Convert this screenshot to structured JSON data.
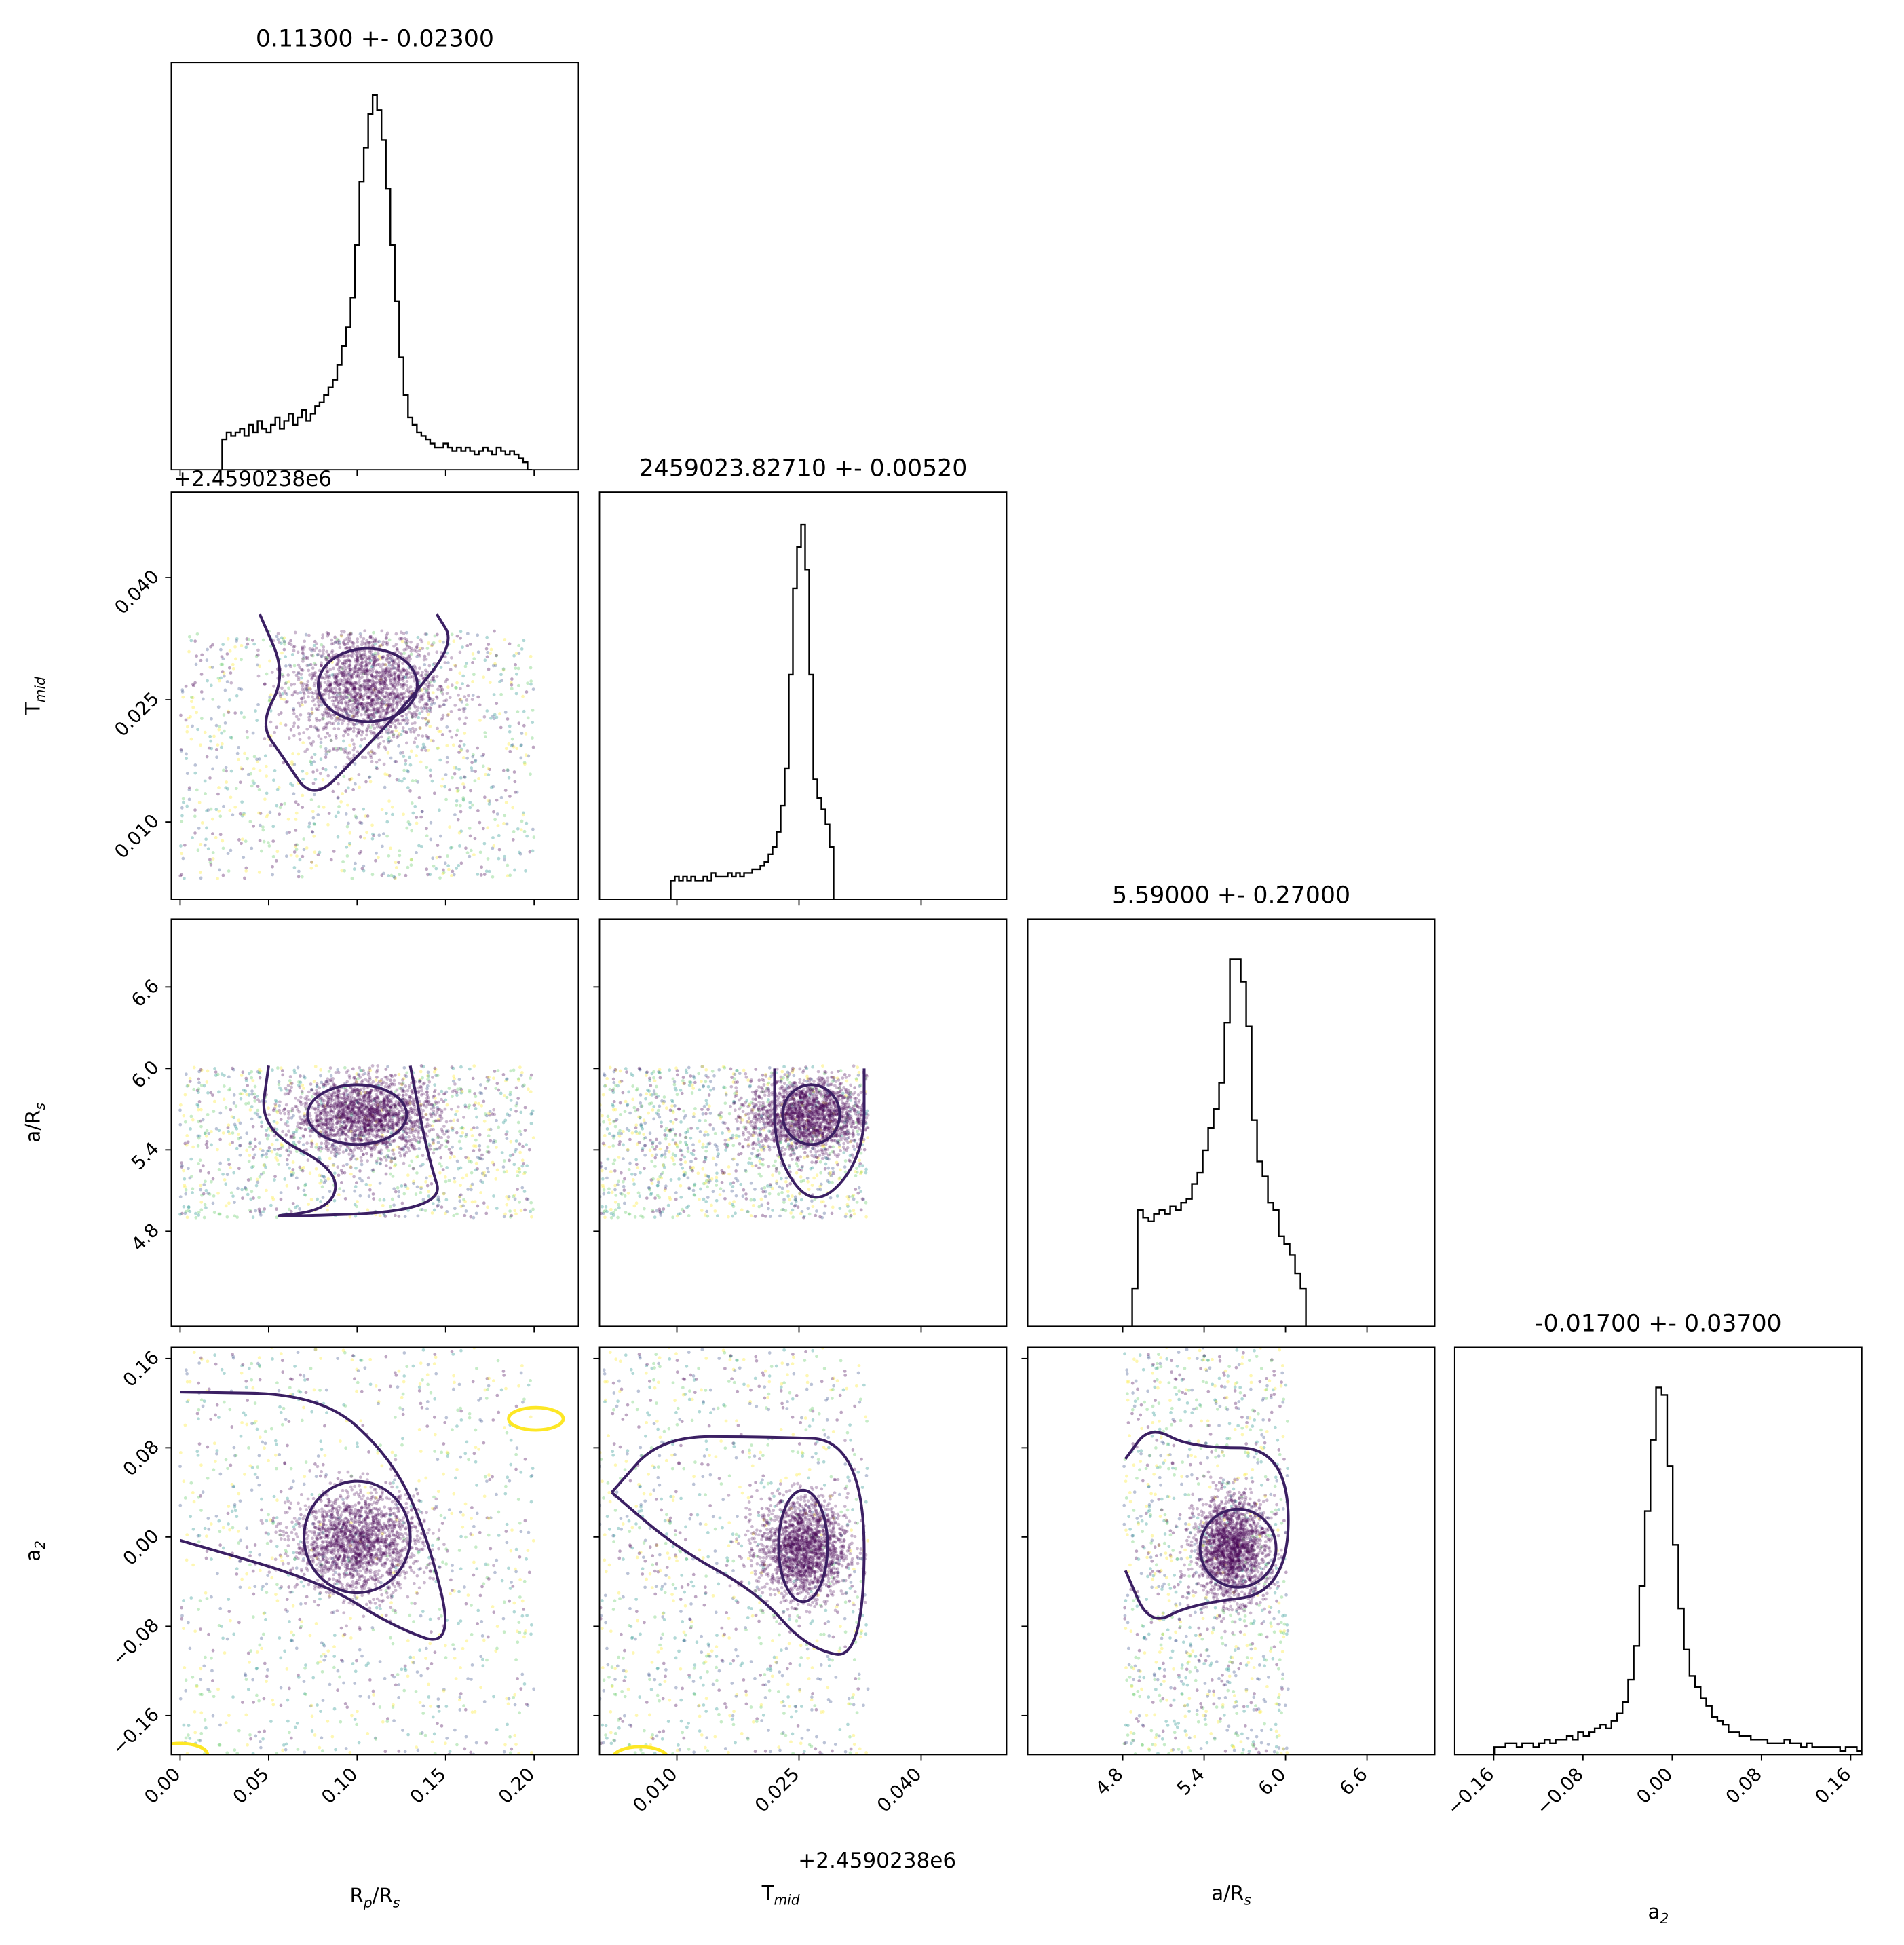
{
  "chart_data": {
    "type": "corner",
    "parameters": [
      {
        "key": "rp",
        "label": "R",
        "sub": "p",
        "label2": "/R",
        "sub2": "s",
        "range": [
          -0.005,
          0.225
        ],
        "ticks": [
          0.0,
          0.05,
          0.1,
          0.15,
          0.2
        ],
        "tick_labels": [
          "0.00",
          "0.05",
          "0.10",
          "0.15",
          "0.20"
        ]
      },
      {
        "key": "tmid",
        "label": "T",
        "sub": "mid",
        "label2": "",
        "sub2": "",
        "range": [
          0.0005,
          0.0505
        ],
        "ticks": [
          0.01,
          0.025,
          0.04
        ],
        "tick_labels": [
          "0.010",
          "0.025",
          "0.040"
        ],
        "offset_text": "+2.4590238e6"
      },
      {
        "key": "ars",
        "label": "a/R",
        "sub": "s",
        "label2": "",
        "sub2": "",
        "range": [
          4.1,
          7.1
        ],
        "ticks": [
          4.8,
          5.4,
          6.0,
          6.6
        ],
        "tick_labels": [
          "4.8",
          "5.4",
          "6.0",
          "6.6"
        ]
      },
      {
        "key": "a2",
        "label": "a",
        "sub": "2",
        "label2": "",
        "sub2": "",
        "range": [
          -0.195,
          0.17
        ],
        "ticks": [
          -0.16,
          -0.08,
          0.0,
          0.08,
          0.16
        ],
        "tick_labels": [
          "−0.16",
          "−0.08",
          "0.00",
          "0.08",
          "0.16"
        ]
      }
    ],
    "titles": [
      "0.11300 +- 0.02300",
      "2459023.82710 +- 0.00520",
      "5.59000 +- 0.27000",
      "-0.01700 +- 0.03700"
    ],
    "marginals": [
      {
        "param": "rp",
        "bin_width": 0.0025,
        "peak_center": 0.11,
        "bin_counts_relative": [
          0.08,
          0.1,
          0.09,
          0.1,
          0.11,
          0.09,
          0.12,
          0.1,
          0.13,
          0.11,
          0.1,
          0.12,
          0.14,
          0.11,
          0.13,
          0.15,
          0.12,
          0.14,
          0.16,
          0.13,
          0.15,
          0.17,
          0.18,
          0.2,
          0.22,
          0.24,
          0.28,
          0.33,
          0.38,
          0.46,
          0.6,
          0.77,
          0.86,
          0.95,
          1.0,
          0.96,
          0.88,
          0.75,
          0.6,
          0.45,
          0.3,
          0.2,
          0.14,
          0.12,
          0.1,
          0.09,
          0.08,
          0.07,
          0.06,
          0.06,
          0.07,
          0.06,
          0.05,
          0.06,
          0.05,
          0.06,
          0.05,
          0.04,
          0.05,
          0.06,
          0.05,
          0.04,
          0.06,
          0.05,
          0.04,
          0.05,
          0.04,
          0.03,
          0.02,
          0.0
        ]
      },
      {
        "param": "tmid",
        "bin_width": 0.0005,
        "peak_center": 0.0255,
        "bin_counts_relative": [
          0.05,
          0.06,
          0.05,
          0.06,
          0.05,
          0.06,
          0.05,
          0.05,
          0.06,
          0.05,
          0.07,
          0.06,
          0.06,
          0.06,
          0.07,
          0.06,
          0.07,
          0.06,
          0.07,
          0.07,
          0.08,
          0.08,
          0.09,
          0.1,
          0.12,
          0.14,
          0.18,
          0.25,
          0.35,
          0.6,
          0.83,
          0.94,
          1.0,
          0.88,
          0.6,
          0.32,
          0.27,
          0.24,
          0.2,
          0.14
        ]
      },
      {
        "param": "ars",
        "bin_width": 0.04,
        "peak_center": 5.61,
        "bin_counts_relative": [
          0.1,
          0.31,
          0.29,
          0.28,
          0.3,
          0.31,
          0.3,
          0.32,
          0.31,
          0.33,
          0.34,
          0.38,
          0.41,
          0.47,
          0.53,
          0.58,
          0.65,
          0.81,
          0.98,
          0.98,
          0.92,
          0.8,
          0.55,
          0.44,
          0.4,
          0.33,
          0.31,
          0.24,
          0.22,
          0.19,
          0.14,
          0.1
        ]
      },
      {
        "param": "a2",
        "bin_width": 0.005,
        "peak_center": -0.012,
        "bin_counts_relative": [
          0.02,
          0.02,
          0.03,
          0.03,
          0.02,
          0.03,
          0.03,
          0.02,
          0.03,
          0.04,
          0.03,
          0.04,
          0.04,
          0.05,
          0.04,
          0.06,
          0.05,
          0.06,
          0.07,
          0.08,
          0.07,
          0.09,
          0.11,
          0.14,
          0.2,
          0.29,
          0.45,
          0.65,
          0.84,
          0.98,
          0.96,
          0.77,
          0.56,
          0.39,
          0.28,
          0.21,
          0.18,
          0.15,
          0.13,
          0.1,
          0.09,
          0.08,
          0.06,
          0.06,
          0.05,
          0.05,
          0.04,
          0.04,
          0.04,
          0.03,
          0.03,
          0.03,
          0.04,
          0.03,
          0.03,
          0.02,
          0.03,
          0.02,
          0.02,
          0.02,
          0.02,
          0.02,
          0.01,
          0.02,
          0.02,
          0.01,
          0.01
        ]
      }
    ],
    "scatter_clusters": [
      {
        "x": "rp",
        "y": "tmid",
        "center": [
          0.105,
          0.0265
        ],
        "spread": [
          0.045,
          0.008
        ],
        "x_bounds": [
          0.0,
          0.2
        ],
        "y_bounds": [
          0.003,
          0.0335
        ]
      },
      {
        "x": "rp",
        "y": "ars",
        "center": [
          0.105,
          5.65
        ],
        "spread": [
          0.045,
          0.3
        ],
        "x_bounds": [
          0.0,
          0.2
        ],
        "y_bounds": [
          4.9,
          6.02
        ]
      },
      {
        "x": "rp",
        "y": "a2",
        "center": [
          0.1,
          -0.005
        ],
        "spread": [
          0.04,
          0.05
        ],
        "x_bounds": [
          0.0,
          0.2
        ],
        "y_bounds": [
          -0.195,
          0.17
        ]
      },
      {
        "x": "tmid",
        "y": "ars",
        "center": [
          0.026,
          5.65
        ],
        "spread": [
          0.008,
          0.3
        ],
        "x_bounds": [
          0.0005,
          0.0335
        ],
        "y_bounds": [
          4.9,
          6.02
        ]
      },
      {
        "x": "tmid",
        "y": "a2",
        "center": [
          0.0255,
          -0.01
        ],
        "spread": [
          0.006,
          0.05
        ],
        "x_bounds": [
          0.0005,
          0.0335
        ],
        "y_bounds": [
          -0.195,
          0.17
        ]
      },
      {
        "x": "ars",
        "y": "a2",
        "center": [
          5.6,
          -0.01
        ],
        "spread": [
          0.3,
          0.05
        ],
        "x_bounds": [
          4.81,
          6.02
        ],
        "y_bounds": [
          -0.195,
          0.17
        ]
      }
    ],
    "contour_levels": [
      {
        "x": "rp",
        "y": "tmid",
        "inner_center": [
          0.106,
          0.0268
        ],
        "inner_radii": [
          0.028,
          0.0045
        ],
        "outer": [
          [
            0.045,
            0.0355
          ],
          [
            0.06,
            0.028
          ],
          [
            0.045,
            0.022
          ],
          [
            0.058,
            0.018
          ],
          [
            0.075,
            0.0125
          ],
          [
            0.1,
            0.018
          ],
          [
            0.13,
            0.025
          ],
          [
            0.155,
            0.032
          ],
          [
            0.145,
            0.0355
          ]
        ]
      },
      {
        "x": "rp",
        "y": "ars",
        "inner_center": [
          0.1,
          5.66
        ],
        "inner_radii": [
          0.028,
          0.22
        ],
        "outer": [
          [
            0.05,
            6.02
          ],
          [
            0.045,
            5.55
          ],
          [
            0.09,
            5.25
          ],
          [
            0.085,
            4.95
          ],
          [
            0.04,
            4.9
          ],
          [
            0.15,
            4.95
          ],
          [
            0.14,
            5.35
          ],
          [
            0.13,
            6.02
          ]
        ]
      },
      {
        "x": "rp",
        "y": "a2",
        "inner_center": [
          0.1,
          0.0
        ],
        "inner_radii": [
          0.03,
          0.05
        ],
        "outer": [
          [
            0.0,
            0.13
          ],
          [
            0.08,
            0.128
          ],
          [
            0.12,
            0.07
          ],
          [
            0.14,
            0.0
          ],
          [
            0.155,
            -0.1
          ],
          [
            0.12,
            -0.08
          ],
          [
            0.08,
            -0.04
          ],
          [
            0.0,
            -0.003
          ]
        ]
      },
      {
        "x": "tmid",
        "y": "ars",
        "inner_center": [
          0.0265,
          5.66
        ],
        "inner_radii": [
          0.0035,
          0.22
        ],
        "outer": [
          [
            0.022,
            6.0
          ],
          [
            0.022,
            5.35
          ],
          [
            0.027,
            4.95
          ],
          [
            0.033,
            5.35
          ],
          [
            0.033,
            6.0
          ]
        ]
      },
      {
        "x": "tmid",
        "y": "a2",
        "inner_center": [
          0.0255,
          -0.008
        ],
        "inner_radii": [
          0.003,
          0.05
        ],
        "outer": [
          [
            0.002,
            0.04
          ],
          [
            0.008,
            0.09
          ],
          [
            0.02,
            0.09
          ],
          [
            0.033,
            0.087
          ],
          [
            0.033,
            -0.11
          ],
          [
            0.026,
            -0.1
          ],
          [
            0.02,
            -0.05
          ],
          [
            0.01,
            -0.01
          ],
          [
            0.002,
            0.04
          ]
        ]
      },
      {
        "x": "ars",
        "y": "a2",
        "inner_center": [
          5.65,
          -0.01
        ],
        "inner_radii": [
          0.28,
          0.035
        ],
        "outer": [
          [
            4.82,
            0.07
          ],
          [
            5.0,
            0.1
          ],
          [
            5.3,
            0.08
          ],
          [
            6.02,
            0.08
          ],
          [
            6.02,
            -0.05
          ],
          [
            5.3,
            -0.06
          ],
          [
            5.0,
            -0.08
          ],
          [
            4.82,
            -0.03
          ]
        ]
      }
    ],
    "contour_color": "#3b1f63",
    "point_colors": [
      "#440154",
      "#3b528b",
      "#21918c",
      "#5ec962",
      "#fde725"
    ],
    "yellow_contours": [
      {
        "x": "rp",
        "y": "a2",
        "center": [
          0.201,
          0.106
        ]
      },
      {
        "x": "rp",
        "y": "a2",
        "center": [
          0.0,
          -0.195
        ]
      },
      {
        "x": "tmid",
        "y": "a2",
        "center": [
          0.0055,
          -0.198
        ]
      }
    ]
  }
}
